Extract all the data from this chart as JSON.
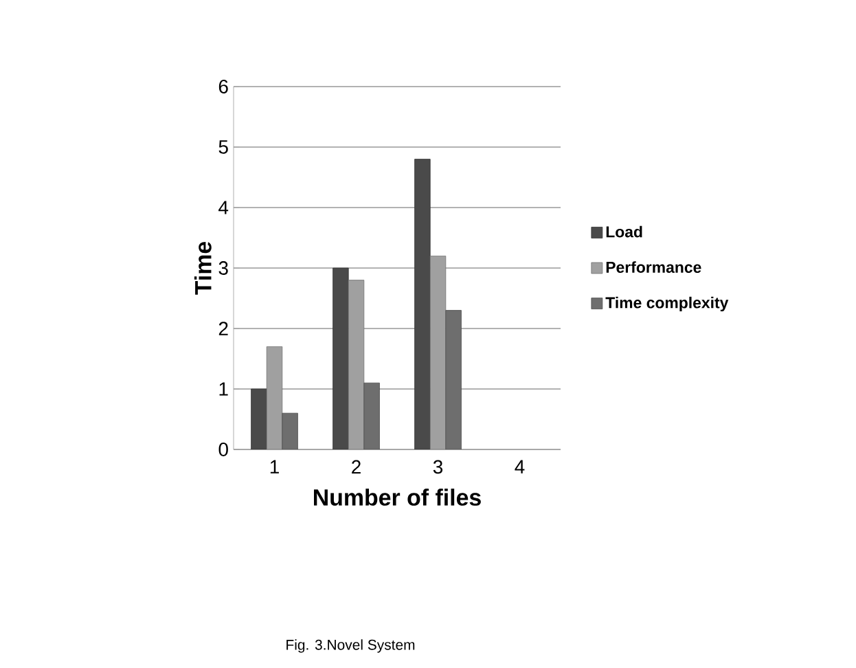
{
  "chart_data": {
    "type": "bar",
    "xlabel": "Number of files",
    "ylabel": "Time",
    "categories": [
      "1",
      "2",
      "3",
      "4"
    ],
    "series": [
      {
        "name": "Load",
        "color": "#4a4a4a",
        "values": [
          1.0,
          3.0,
          4.8,
          null
        ]
      },
      {
        "name": "Performance",
        "color": "#a0a0a0",
        "values": [
          1.7,
          2.8,
          3.2,
          null
        ]
      },
      {
        "name": "Time complexity",
        "color": "#6e6e6e",
        "values": [
          0.6,
          1.1,
          2.3,
          null
        ]
      }
    ],
    "ylim": [
      0,
      6
    ],
    "yticks": [
      0,
      1,
      2,
      3,
      4,
      5,
      6
    ],
    "grid": "y",
    "legend": "right",
    "annotations": [
      "Fig. 3.Novel System"
    ]
  }
}
